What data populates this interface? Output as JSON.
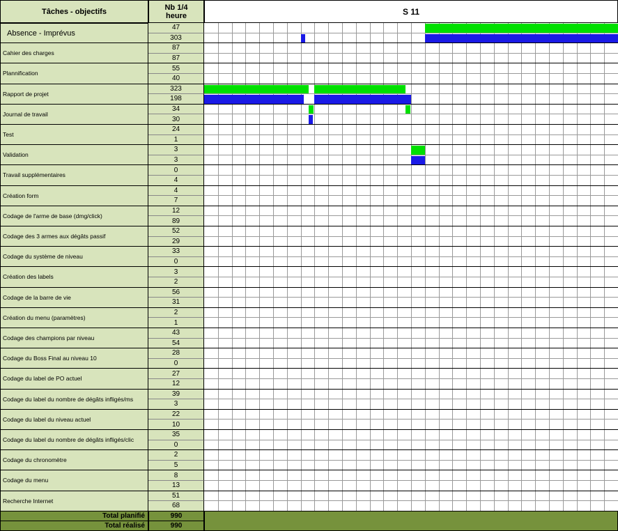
{
  "header": {
    "task_col": "Tâches - objectifs",
    "nb_col": "Nb 1/4 heure",
    "week": "S 11"
  },
  "rows": [
    {
      "task": "Absence - Imprévus",
      "planned": "47",
      "done": "303"
    },
    {
      "task": "Cahier des charges",
      "planned": "87",
      "done": "87"
    },
    {
      "task": "Plannification",
      "planned": "55",
      "done": "40"
    },
    {
      "task": "Rapport de projet",
      "planned": "323",
      "done": "198"
    },
    {
      "task": "Journal de travail",
      "planned": "34",
      "done": "30"
    },
    {
      "task": "Test",
      "planned": "24",
      "done": "1"
    },
    {
      "task": "Validation",
      "planned": "3",
      "done": "3"
    },
    {
      "task": "Travail supplémentaires",
      "planned": "0",
      "done": "4"
    },
    {
      "task": "Création form",
      "planned": "4",
      "done": "7"
    },
    {
      "task": "Codage de l'arme de base (dmg/click)",
      "planned": "12",
      "done": "89"
    },
    {
      "task": "Codage des 3 armes aux dégâts passif",
      "planned": "52",
      "done": "29"
    },
    {
      "task": "Codage du système de niveau",
      "planned": "33",
      "done": "0"
    },
    {
      "task": "Création des labels",
      "planned": "3",
      "done": "2"
    },
    {
      "task": "Codage de la barre de vie",
      "planned": "56",
      "done": "31"
    },
    {
      "task": "Création du menu (paramètres)",
      "planned": "2",
      "done": "1"
    },
    {
      "task": "Codage des champions par niveau",
      "planned": "43",
      "done": "54"
    },
    {
      "task": "Codage du Boss Final au niveau 10",
      "planned": "28",
      "done": "0"
    },
    {
      "task": "Codage du label de PO actuel",
      "planned": "27",
      "done": "12"
    },
    {
      "task": "Codage du label du nombre de dégâts infligés/ms",
      "planned": "39",
      "done": "3"
    },
    {
      "task": "Codage du label du niveau actuel",
      "planned": "22",
      "done": "10"
    },
    {
      "task": "Codage du label du nombre de dégâts infligés/clic",
      "planned": "35",
      "done": "0"
    },
    {
      "task": "Codage du chronomètre",
      "planned": "2",
      "done": "5"
    },
    {
      "task": "Codage du menu",
      "planned": "8",
      "done": "13"
    },
    {
      "task": "Recherche Internet",
      "planned": "51",
      "done": "68"
    }
  ],
  "totals": {
    "planned_label": "Total planifié",
    "planned_value": "990",
    "done_label": "Total réalisé",
    "done_value": "990"
  },
  "colors": {
    "header_bg": "#d8e4bc",
    "total_bg": "#76923c",
    "planned_bar": "#00e000",
    "done_bar": "#1a1ae6"
  }
}
